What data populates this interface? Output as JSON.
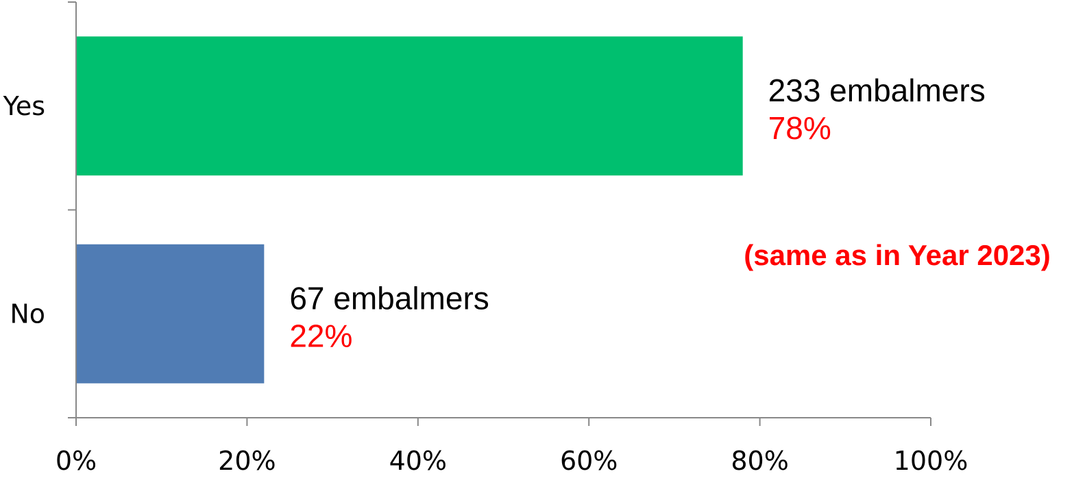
{
  "chart_data": {
    "type": "bar",
    "orientation": "horizontal",
    "categories": [
      "Yes",
      "No"
    ],
    "values": [
      78,
      22
    ],
    "value_unit": "%",
    "counts": [
      "233 embalmers",
      "67 embalmers"
    ],
    "percent_labels": [
      "78%",
      "22%"
    ],
    "bar_colors": [
      "#00BF6F",
      "#507CB4"
    ],
    "xlim": [
      0,
      100
    ],
    "x_ticks": [
      0,
      20,
      40,
      60,
      80,
      100
    ],
    "x_tick_labels": [
      "0%",
      "20%",
      "40%",
      "60%",
      "80%",
      "100%"
    ],
    "grid": false,
    "annotation": "(same as in Year 2023)",
    "colors": {
      "axis": "#888888",
      "percent_text": "#FF0000",
      "annotation_text": "#FF0000"
    }
  }
}
